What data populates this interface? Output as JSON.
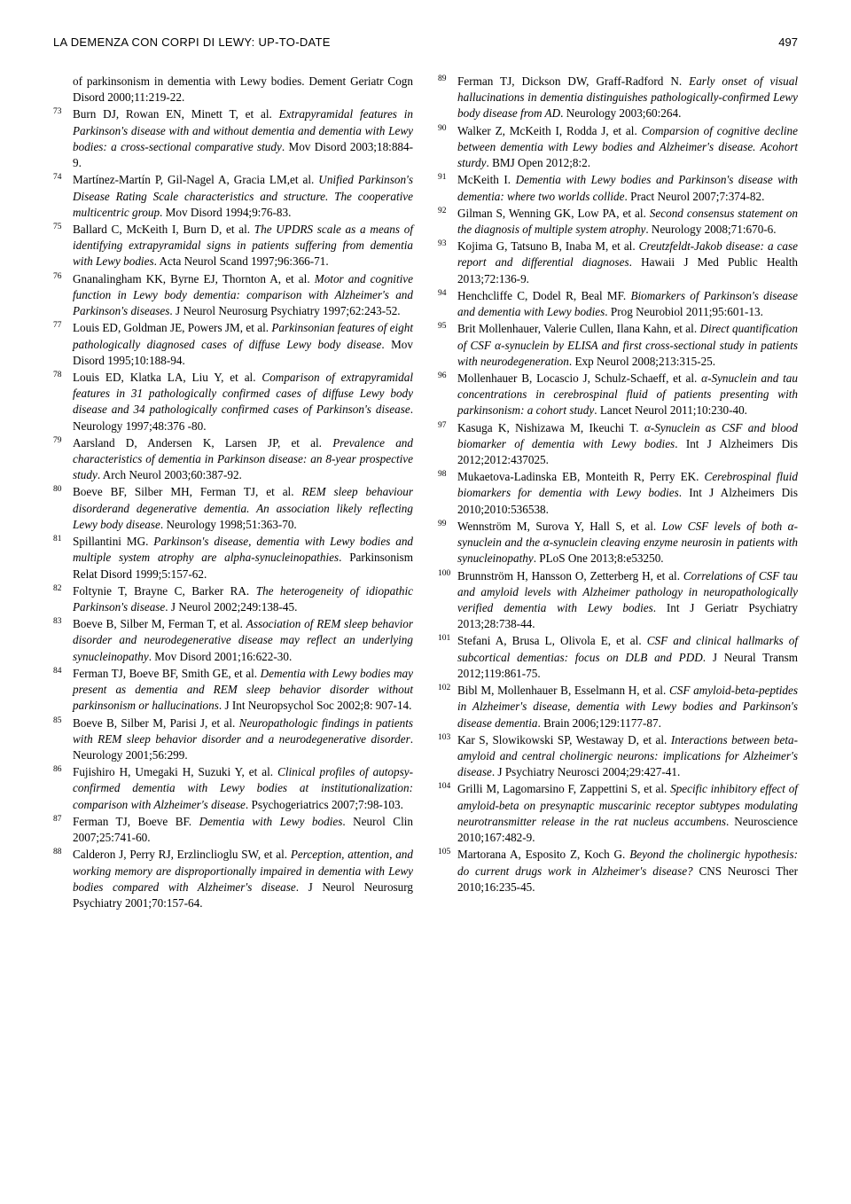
{
  "header": {
    "running_title": "LA DEMENZA CON CORPI DI LEWY: UP-TO-DATE",
    "page_number": "497"
  },
  "left_column": {
    "continuation": "of parkinsonism in dementia with Lewy bodies. Dement Geriatr Cogn Disord 2000;11:219-22.",
    "refs": [
      {
        "n": "73",
        "authors": "Burn DJ, Rowan EN, Minett T, et al.",
        "title": "Extrapyramidal features in Parkinson's disease with and without dementia and dementia with Lewy bodies: a cross-sectional comparative study",
        "src": ". Mov Disord 2003;18:884-9."
      },
      {
        "n": "74",
        "authors": "Martínez-Martín P, Gil-Nagel A, Gracia LM,et al.",
        "title": "Unified Parkinson's Disease Rating Scale characteristics and structure. The cooperative multicentric group",
        "src": ". Mov Disord 1994;9:76-83."
      },
      {
        "n": "75",
        "authors": "Ballard C, McKeith I, Burn D, et al.",
        "title": "The UPDRS scale as a means of identifying extrapyramidal signs in patients suffering from dementia with Lewy bodies",
        "src": ". Acta Neurol Scand 1997;96:366-71."
      },
      {
        "n": "76",
        "authors": "Gnanalingham KK, Byrne EJ, Thornton A, et al.",
        "title": "Motor and cognitive function in Lewy body dementia: comparison with Alzheimer's and Parkinson's diseases",
        "src": ". J Neurol Neurosurg Psychiatry 1997;62:243-52."
      },
      {
        "n": "77",
        "authors": "Louis ED, Goldman JE, Powers JM, et al.",
        "title": "Parkinsonian features of eight pathologically diagnosed cases of diffuse Lewy body disease",
        "src": ". Mov Disord 1995;10:188-94."
      },
      {
        "n": "78",
        "authors": "Louis ED, Klatka LA, Liu Y, et al.",
        "title": "Comparison of extrapyramidal features in 31 pathologically confirmed cases of diffuse Lewy body disease and 34 pathologically confirmed cases of Parkinson's disease",
        "src": ". Neurology 1997;48:376 -80."
      },
      {
        "n": "79",
        "authors": "Aarsland D, Andersen K, Larsen JP, et al.",
        "title": "Prevalence and characteristics of dementia in Parkinson disease: an 8-year prospective study",
        "src": ". Arch Neurol 2003;60:387-92."
      },
      {
        "n": "80",
        "authors": "Boeve BF, Silber MH, Ferman TJ, et al.",
        "title": "REM sleep behaviour disorderand degenerative dementia. An association likely reflecting Lewy body disease",
        "src": ". Neurology 1998;51:363-70."
      },
      {
        "n": "81",
        "authors": "Spillantini MG.",
        "title": "Parkinson's disease, dementia with Lewy bodies and multiple system atrophy are alpha-synucleinopathies",
        "src": ". Parkinsonism Relat Disord 1999;5:157-62."
      },
      {
        "n": "82",
        "authors": "Foltynie T, Brayne C, Barker RA.",
        "title": "The heterogeneity of idiopathic Parkinson's disease",
        "src": ". J Neurol 2002;249:138-45."
      },
      {
        "n": "83",
        "authors": "Boeve B, Silber M, Ferman T, et al.",
        "title": "Association of REM sleep behavior disorder and neurodegenerative disease may reflect an underlying synucleinopathy",
        "src": ". Mov Disord 2001;16:622-30."
      },
      {
        "n": "84",
        "authors": "Ferman TJ, Boeve BF, Smith GE, et al.",
        "title": "Dementia with Lewy bodies may present as dementia and REM sleep behavior disorder without parkinsonism or hallucinations",
        "src": ". J Int Neuropsychol Soc 2002;8: 907-14."
      },
      {
        "n": "85",
        "authors": "Boeve B, Silber M, Parisi J, et al.",
        "title": "Neuropathologic findings in patients with REM sleep behavior disorder and a neurodegenerative disorder",
        "src": ". Neurology 2001;56:299."
      },
      {
        "n": "86",
        "authors": "Fujishiro H, Umegaki H, Suzuki Y, et al.",
        "title": "Clinical profiles of autopsy-confirmed dementia with Lewy bodies at institutionalization: comparison with Alzheimer's disease",
        "src": ". Psychogeriatrics 2007;7:98-103."
      },
      {
        "n": "87",
        "authors": "Ferman TJ, Boeve BF.",
        "title": "Dementia with Lewy bodies",
        "src": ". Neurol Clin 2007;25:741-60."
      },
      {
        "n": "88",
        "authors": "Calderon J, Perry RJ, Erzlinclioglu SW, et al.",
        "title": "Perception, attention, and working memory are disproportionally impaired in dementia with Lewy bodies compared with Alzheimer's disease",
        "src": ". J Neurol Neurosurg Psychiatry 2001;70:157-64."
      }
    ]
  },
  "right_column": {
    "refs": [
      {
        "n": "89",
        "authors": "Ferman TJ, Dickson DW, Graff-Radford N.",
        "title": "Early onset of visual hallucinations in dementia distinguishes pathologically-confirmed Lewy body disease from AD",
        "src": ". Neurology 2003;60:264."
      },
      {
        "n": "90",
        "authors": "Walker Z, McKeith I, Rodda J, et al.",
        "title": "Comparsion of cognitive decline between dementia with Lewy bodies and Alzheimer's disease. Acohort sturdy",
        "src": ". BMJ Open 2012;8:2."
      },
      {
        "n": "91",
        "authors": "McKeith I.",
        "title": "Dementia with Lewy bodies and Parkinson's disease with dementia: where two worlds collide",
        "src": ". Pract Neurol 2007;7:374-82."
      },
      {
        "n": "92",
        "authors": "Gilman S, Wenning GK, Low PA, et al.",
        "title": "Second consensus statement on the diagnosis of multiple system atrophy",
        "src": ". Neurology 2008;71:670-6."
      },
      {
        "n": "93",
        "authors": "Kojima G, Tatsuno B, Inaba M, et al.",
        "title": "Creutzfeldt-Jakob disease: a case report and differential diagnoses",
        "src": ". Hawaii J Med Public Health 2013;72:136-9."
      },
      {
        "n": "94",
        "authors": "Henchcliffe C, Dodel R, Beal MF.",
        "title": "Biomarkers of Parkinson's disease and dementia with Lewy bodies",
        "src": ". Prog Neurobiol 2011;95:601-13."
      },
      {
        "n": "95",
        "authors": "Brit Mollenhauer, Valerie Cullen, Ilana Kahn, et al.",
        "title": "Direct quantification of CSF α-synuclein by ELISA and first cross-sectional study in patients with neurodegeneration",
        "src": ". Exp Neurol 2008;213:315-25."
      },
      {
        "n": "96",
        "authors": "Mollenhauer B, Locascio J, Schulz-Schaeff, et al.",
        "title": "α-Synuclein and tau concentrations in cerebrospinal fluid of patients presenting with parkinsonism: a cohort study",
        "src": ". Lancet Neurol 2011;10:230-40."
      },
      {
        "n": "97",
        "authors": "Kasuga K, Nishizawa M, Ikeuchi T.",
        "title": "α-Synuclein as CSF and blood biomarker of dementia with Lewy bodies",
        "src": ". Int J Alzheimers Dis 2012;2012:437025."
      },
      {
        "n": "98",
        "authors": "Mukaetova-Ladinska EB, Monteith R, Perry EK.",
        "title": "Cerebrospinal fluid biomarkers for dementia with Lewy bodies",
        "src": ". Int J Alzheimers Dis 2010;2010:536538."
      },
      {
        "n": "99",
        "authors": "Wennström M, Surova Y, Hall S, et al.",
        "title": "Low CSF levels of both α-synuclein and the α-synuclein cleaving enzyme neurosin in patients with synucleinopathy",
        "src": ". PLoS One 2013;8:e53250."
      },
      {
        "n": "100",
        "authors": "Brunnström H, Hansson O, Zetterberg H, et al.",
        "title": "Correlations of CSF tau and amyloid levels with Alzheimer pathology in neuropathologically verified dementia with Lewy bodies",
        "src": ". Int J Geriatr Psychiatry 2013;28:738-44."
      },
      {
        "n": "101",
        "authors": "Stefani A, Brusa L, Olivola E, et al.",
        "title": "CSF and clinical hallmarks of subcortical dementias: focus on DLB and PDD",
        "src": ". J Neural Transm 2012;119:861-75."
      },
      {
        "n": "102",
        "authors": "Bibl M, Mollenhauer B, Esselmann H, et al.",
        "title": "CSF amyloid-beta-peptides in Alzheimer's disease, dementia with Lewy bodies and Parkinson's disease dementia",
        "src": ". Brain 2006;129:1177-87."
      },
      {
        "n": "103",
        "authors": "Kar S, Slowikowski SP, Westaway D, et al.",
        "title": "Interactions between beta-amyloid and central cholinergic neurons: implications for Alzheimer's disease",
        "src": ". J Psychiatry Neurosci 2004;29:427-41."
      },
      {
        "n": "104",
        "authors": "Grilli M, Lagomarsino F, Zappettini S, et al.",
        "title": "Specific inhibitory effect of amyloid-beta on presynaptic muscarinic receptor subtypes modulating neurotransmitter release in the rat nucleus accumbens",
        "src": ". Neuroscience 2010;167:482-9."
      },
      {
        "n": "105",
        "authors": "Martorana A, Esposito Z, Koch G.",
        "title": "Beyond the cholinergic hypothesis: do current drugs work in Alzheimer's disease?",
        "src": " CNS Neurosci Ther 2010;16:235-45."
      }
    ]
  }
}
